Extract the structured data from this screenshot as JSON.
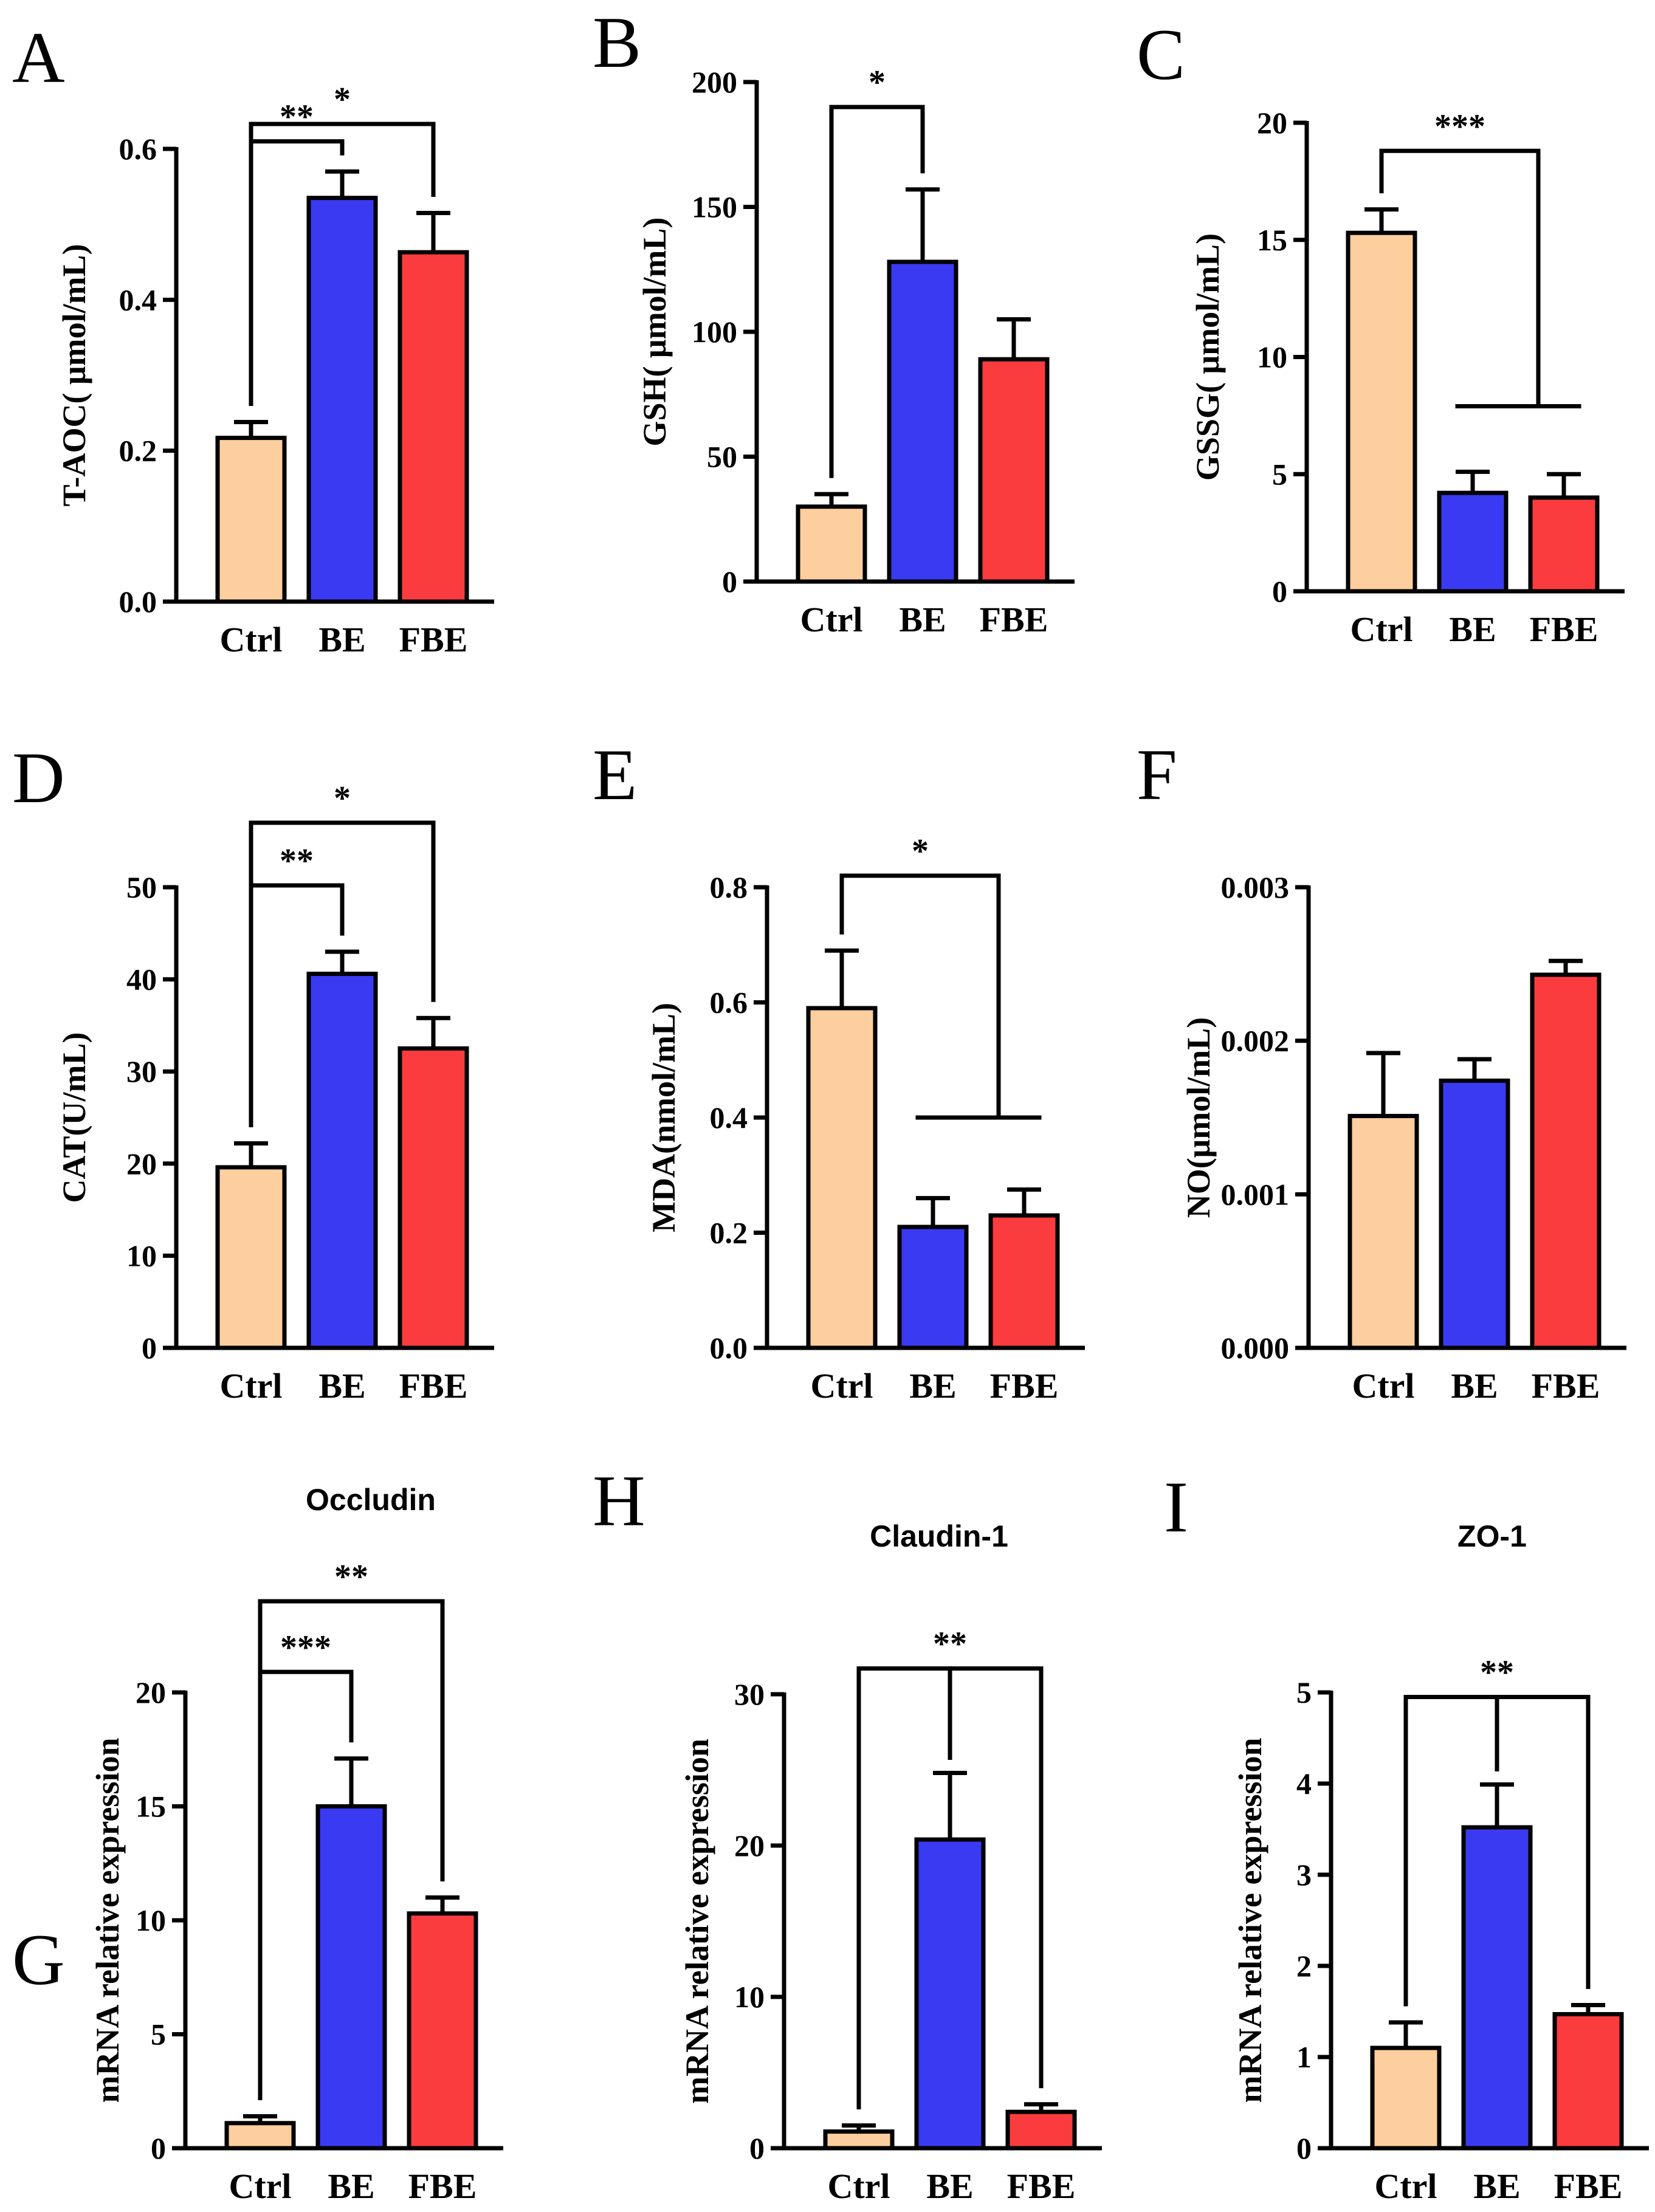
{
  "colors": {
    "Ctrl": "#FDCE9E",
    "BE": "#3A3AF2",
    "FBE": "#FB3C3F",
    "line": "#000000"
  },
  "chart_data": [
    {
      "letter": "A",
      "type": "bar",
      "title": "",
      "ylabel": "T-AOC( μmol/mL)",
      "categories": [
        "Ctrl",
        "BE",
        "FBE"
      ],
      "values": [
        0.217,
        0.535,
        0.463
      ],
      "errors": [
        0.021,
        0.035,
        0.052
      ],
      "ylim": [
        0,
        0.6
      ],
      "yticks": [
        "0.0",
        "0.2",
        "0.4",
        "0.6"
      ],
      "ytick_values": [
        0,
        0.2,
        0.4,
        0.6
      ],
      "significance": [
        {
          "type": "pair",
          "from": 0,
          "to": 2,
          "level": 0.633,
          "label": "*"
        },
        {
          "type": "pair",
          "from": 0,
          "to": 1,
          "level": 0.61,
          "label": "**"
        }
      ]
    },
    {
      "letter": "B",
      "type": "bar",
      "title": "",
      "ylabel": "GSH( μmol/mL)",
      "categories": [
        "Ctrl",
        "BE",
        "FBE"
      ],
      "values": [
        30,
        128,
        89
      ],
      "errors": [
        5,
        29,
        16
      ],
      "ylim": [
        0,
        200
      ],
      "yticks": [
        "0",
        "50",
        "100",
        "150",
        "200"
      ],
      "ytick_values": [
        0,
        50,
        100,
        150,
        200
      ],
      "significance": [
        {
          "type": "pair",
          "from": 0,
          "to": 1,
          "level": 190,
          "label": "*"
        }
      ]
    },
    {
      "letter": "C",
      "type": "bar",
      "title": "",
      "ylabel": "GSSG( μmol/mL)",
      "categories": [
        "Ctrl",
        "BE",
        "FBE"
      ],
      "values": [
        15.3,
        4.2,
        4.0
      ],
      "errors": [
        1.0,
        0.9,
        1.0
      ],
      "ylim": [
        0,
        20
      ],
      "yticks": [
        "0",
        "5",
        "10",
        "15",
        "20"
      ],
      "ytick_values": [
        0,
        5,
        10,
        15,
        20
      ],
      "significance": [
        {
          "type": "group",
          "from": 0,
          "to": [
            1,
            2
          ],
          "level": 18.8,
          "group_level": 7.9,
          "label": "***"
        }
      ]
    },
    {
      "letter": "D",
      "type": "bar",
      "title": "",
      "ylabel": "CAT(U/mL)",
      "categories": [
        "Ctrl",
        "BE",
        "FBE"
      ],
      "values": [
        19.6,
        40.6,
        32.5
      ],
      "errors": [
        2.6,
        2.4,
        3.3
      ],
      "ylim": [
        0,
        50
      ],
      "yticks": [
        "0",
        "10",
        "20",
        "30",
        "40",
        "50"
      ],
      "ytick_values": [
        0,
        10,
        20,
        30,
        40,
        50
      ],
      "significance": [
        {
          "type": "pair",
          "from": 0,
          "to": 2,
          "level": 57.0,
          "label": "*"
        },
        {
          "type": "pair",
          "from": 0,
          "to": 1,
          "level": 50.2,
          "label": "**"
        }
      ]
    },
    {
      "letter": "E",
      "type": "bar",
      "title": "",
      "ylabel": "MDA(nmol/mL)",
      "categories": [
        "Ctrl",
        "BE",
        "FBE"
      ],
      "values": [
        0.59,
        0.21,
        0.23
      ],
      "errors": [
        0.1,
        0.05,
        0.045
      ],
      "ylim": [
        0,
        0.8
      ],
      "yticks": [
        "0.0",
        "0.2",
        "0.4",
        "0.6",
        "0.8"
      ],
      "ytick_values": [
        0,
        0.2,
        0.4,
        0.6,
        0.8
      ],
      "significance": [
        {
          "type": "group",
          "from": 0,
          "to": [
            1,
            2
          ],
          "level": 0.82,
          "group_level": 0.4,
          "label": "*"
        }
      ]
    },
    {
      "letter": "F",
      "type": "bar",
      "title": "",
      "ylabel": "NO(μmol/mL)",
      "categories": [
        "Ctrl",
        "BE",
        "FBE"
      ],
      "values": [
        0.00151,
        0.00174,
        0.00243
      ],
      "errors": [
        0.00041,
        0.00014,
        9e-05
      ],
      "ylim": [
        0,
        0.003
      ],
      "yticks": [
        "0.000",
        "0.001",
        "0.002",
        "0.003"
      ],
      "ytick_values": [
        0,
        0.001,
        0.002,
        0.003
      ],
      "significance": []
    },
    {
      "letter": "G",
      "type": "bar",
      "title": "Occludin",
      "ylabel": "mRNA relative expression",
      "categories": [
        "Ctrl",
        "BE",
        "FBE"
      ],
      "values": [
        1.1,
        15.0,
        10.3
      ],
      "errors": [
        0.3,
        2.1,
        0.7
      ],
      "ylim": [
        0,
        20
      ],
      "yticks": [
        "0",
        "5",
        "10",
        "15",
        "20"
      ],
      "ytick_values": [
        0,
        5,
        10,
        15,
        20
      ],
      "significance": [
        {
          "type": "pair",
          "from": 0,
          "to": 2,
          "level": 24.0,
          "label": "**"
        },
        {
          "type": "pair",
          "from": 0,
          "to": 1,
          "level": 20.9,
          "label": "***"
        }
      ]
    },
    {
      "letter": "H",
      "type": "bar",
      "title": "Claudin-1",
      "ylabel": "mRNA relative expression",
      "categories": [
        "Ctrl",
        "BE",
        "FBE"
      ],
      "values": [
        1.1,
        20.4,
        2.4
      ],
      "errors": [
        0.4,
        4.4,
        0.5
      ],
      "ylim": [
        0,
        30
      ],
      "yticks": [
        "0",
        "10",
        "20",
        "30"
      ],
      "ytick_values": [
        0,
        10,
        20,
        30
      ],
      "significance": [
        {
          "type": "center",
          "from": 0,
          "to": 2,
          "middle": 1,
          "level": 31.7,
          "label": "**"
        }
      ]
    },
    {
      "letter": "I",
      "type": "bar",
      "title": "ZO-1",
      "ylabel": "mRNA relative expression",
      "categories": [
        "Ctrl",
        "BE",
        "FBE"
      ],
      "values": [
        1.1,
        3.52,
        1.47
      ],
      "errors": [
        0.28,
        0.47,
        0.1
      ],
      "ylim": [
        0,
        5
      ],
      "yticks": [
        "0",
        "1",
        "2",
        "3",
        "4",
        "5"
      ],
      "ytick_values": [
        0,
        1,
        2,
        3,
        4,
        5
      ],
      "significance": [
        {
          "type": "center",
          "from": 0,
          "to": 2,
          "middle": 1,
          "level": 4.95,
          "label": "**"
        }
      ]
    }
  ]
}
